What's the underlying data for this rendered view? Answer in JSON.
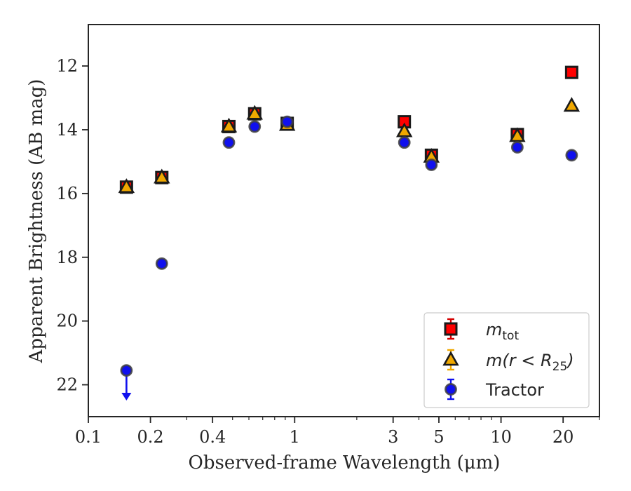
{
  "chart_data": {
    "type": "scatter",
    "xlabel": "Observed-frame Wavelength (μm)",
    "ylabel": "Apparent Brightness (AB mag)",
    "x_scale": "log",
    "y_inverted": true,
    "xlim": [
      0.1,
      30
    ],
    "ylim": [
      23,
      10.7
    ],
    "x_ticks": [
      {
        "value": 0.1,
        "label": "0.1"
      },
      {
        "value": 0.2,
        "label": "0.2"
      },
      {
        "value": 0.4,
        "label": "0.4"
      },
      {
        "value": 1,
        "label": "1"
      },
      {
        "value": 3,
        "label": "3"
      },
      {
        "value": 5,
        "label": "5"
      },
      {
        "value": 10,
        "label": "10"
      },
      {
        "value": 20,
        "label": "20"
      }
    ],
    "y_ticks": [
      {
        "value": 12,
        "label": "12"
      },
      {
        "value": 14,
        "label": "14"
      },
      {
        "value": 16,
        "label": "16"
      },
      {
        "value": 18,
        "label": "18"
      },
      {
        "value": 20,
        "label": "20"
      },
      {
        "value": 22,
        "label": "22"
      }
    ],
    "grid": false,
    "legend_position": "lower-right",
    "series": [
      {
        "name": "m_tot",
        "legend_main": "m",
        "legend_sub": "tot",
        "marker": "square",
        "color": "#ff0000",
        "edge": "#1a1a1a",
        "errcolor": "#d40000",
        "x": [
          0.153,
          0.227,
          0.48,
          0.64,
          0.92,
          3.4,
          4.6,
          12,
          22
        ],
        "y": [
          15.8,
          15.5,
          13.9,
          13.5,
          13.8,
          13.75,
          14.8,
          14.15,
          12.2
        ]
      },
      {
        "name": "m(r < R25)",
        "legend_main": "m(r < R",
        "legend_sub": "25",
        "legend_tail": ")",
        "marker": "triangle",
        "color": "#f0a800",
        "edge": "#1a1a1a",
        "errcolor": "#f0a800",
        "x": [
          0.153,
          0.227,
          0.48,
          0.64,
          0.92,
          3.4,
          4.6,
          12,
          22
        ],
        "y": [
          15.8,
          15.5,
          13.9,
          13.5,
          13.85,
          14.05,
          14.85,
          14.2,
          13.25
        ]
      },
      {
        "name": "Tractor",
        "marker": "circle",
        "color": "#1010ee",
        "edge": "#404040",
        "errcolor": "#1010ee",
        "x": [
          0.153,
          0.227,
          0.48,
          0.64,
          0.92,
          3.4,
          4.6,
          12,
          22
        ],
        "y": [
          21.55,
          18.2,
          14.4,
          13.9,
          13.75,
          14.4,
          15.1,
          14.55,
          14.8
        ],
        "upper_limit_index": 0,
        "upper_limit_to": 22.45
      }
    ]
  }
}
